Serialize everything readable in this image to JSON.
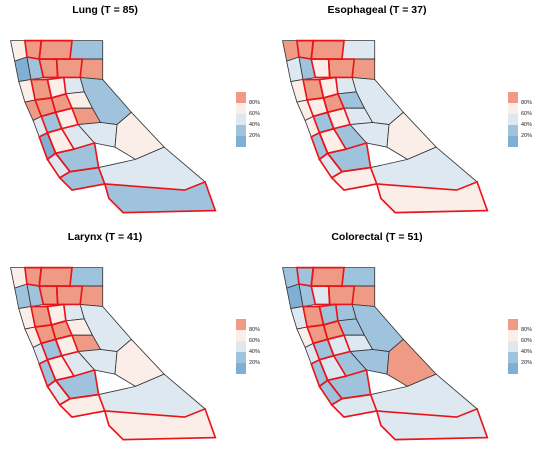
{
  "colors": {
    "q80": "#ef9a84",
    "q60": "#fbeee9",
    "q40": "#dde8f1",
    "q20": "#9fc2dd",
    "q0": "#7fb0d4",
    "white": "#f8f8f8",
    "highlight": "#e8141a",
    "border": "#333333"
  },
  "legend": {
    "labels": [
      "80%",
      "60%",
      "40%",
      "20%"
    ],
    "bins": [
      "q80",
      "q60",
      "q40",
      "q20",
      "q0"
    ]
  },
  "panels": [
    {
      "title": "Lung (T = 85)",
      "fills": [
        "q60",
        "q80",
        "q80",
        "q20",
        "q0",
        "q20",
        "q80",
        "q80",
        "q80",
        "q60",
        "q80",
        "q60",
        "q40",
        "q80",
        "q80",
        "q80",
        "q60",
        "q40",
        "q20",
        "q60",
        "q80",
        "q20",
        "q0",
        "q60",
        "q40",
        "q40",
        "q60",
        "q40",
        "q20",
        "q20",
        "q40",
        "q20"
      ]
    },
    {
      "title": "Esophageal (T = 37)",
      "fills": [
        "q80",
        "q80",
        "q80",
        "q40",
        "q40",
        "q20",
        "q60",
        "q80",
        "q80",
        "q60",
        "q80",
        "q60",
        "q40",
        "q60",
        "q60",
        "q80",
        "q20",
        "q60",
        "q20",
        "q60",
        "q40",
        "q40",
        "q20",
        "q60",
        "q20",
        "q40",
        "q60",
        "q40",
        "q20",
        "q60",
        "q40",
        "q60"
      ]
    },
    {
      "title": "Larynx (T = 41)",
      "fills": [
        "q60",
        "q80",
        "q80",
        "q20",
        "q20",
        "q20",
        "q80",
        "q80",
        "q80",
        "q60",
        "q80",
        "q60",
        "q40",
        "q60",
        "q80",
        "q80",
        "q60",
        "q40",
        "q20",
        "q60",
        "q80",
        "q40",
        "q20",
        "q60",
        "q40",
        "q40",
        "q60",
        "q40",
        "q20",
        "q60",
        "q40",
        "q60"
      ]
    },
    {
      "title": "Colorectal (T = 51)",
      "fills": [
        "q20",
        "q20",
        "q80",
        "q20",
        "q0",
        "q20",
        "q40",
        "q80",
        "q80",
        "q40",
        "q80",
        "q20",
        "q20",
        "q60",
        "q80",
        "q80",
        "q20",
        "q40",
        "q20",
        "q40",
        "q40",
        "q20",
        "q20",
        "q40",
        "q20",
        "q20",
        "q80",
        "q20",
        "q20",
        "q40",
        "q40",
        "q40"
      ]
    }
  ]
}
